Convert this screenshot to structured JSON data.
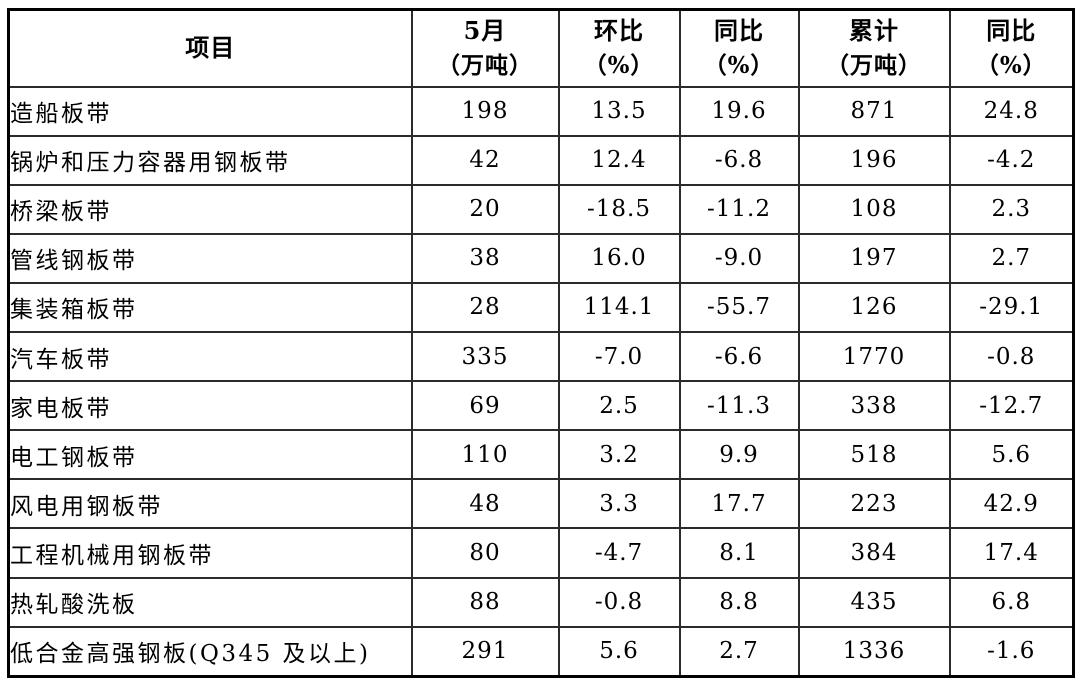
{
  "table": {
    "headers": [
      {
        "label": "项目",
        "sub": ""
      },
      {
        "label": "5月",
        "sub": "（万吨）"
      },
      {
        "label": "环比",
        "sub": "（%）"
      },
      {
        "label": "同比",
        "sub": "（%）"
      },
      {
        "label": "累计",
        "sub": "（万吨）"
      },
      {
        "label": "同比",
        "sub": "（%）"
      }
    ],
    "rows": [
      {
        "item": "造船板带",
        "may": "198",
        "mom": "13.5",
        "yoy": "19.6",
        "cum": "871",
        "cum_yoy": "24.8"
      },
      {
        "item": "锅炉和压力容器用钢板带",
        "may": "42",
        "mom": "12.4",
        "yoy": "-6.8",
        "cum": "196",
        "cum_yoy": "-4.2"
      },
      {
        "item": "桥梁板带",
        "may": "20",
        "mom": "-18.5",
        "yoy": "-11.2",
        "cum": "108",
        "cum_yoy": "2.3"
      },
      {
        "item": "管线钢板带",
        "may": "38",
        "mom": "16.0",
        "yoy": "-9.0",
        "cum": "197",
        "cum_yoy": "2.7"
      },
      {
        "item": "集装箱板带",
        "may": "28",
        "mom": "114.1",
        "yoy": "-55.7",
        "cum": "126",
        "cum_yoy": "-29.1"
      },
      {
        "item": "汽车板带",
        "may": "335",
        "mom": "-7.0",
        "yoy": "-6.6",
        "cum": "1770",
        "cum_yoy": "-0.8"
      },
      {
        "item": "家电板带",
        "may": "69",
        "mom": "2.5",
        "yoy": "-11.3",
        "cum": "338",
        "cum_yoy": "-12.7"
      },
      {
        "item": "电工钢板带",
        "may": "110",
        "mom": "3.2",
        "yoy": "9.9",
        "cum": "518",
        "cum_yoy": "5.6"
      },
      {
        "item": "风电用钢板带",
        "may": "48",
        "mom": "3.3",
        "yoy": "17.7",
        "cum": "223",
        "cum_yoy": "42.9"
      },
      {
        "item": "工程机械用钢板带",
        "may": "80",
        "mom": "-4.7",
        "yoy": "8.1",
        "cum": "384",
        "cum_yoy": "17.4"
      },
      {
        "item": "热轧酸洗板",
        "may": "88",
        "mom": "-0.8",
        "yoy": "8.8",
        "cum": "435",
        "cum_yoy": "6.8"
      },
      {
        "item": "低合金高强钢板(Q345 及以上)",
        "may": "291",
        "mom": "5.6",
        "yoy": "2.7",
        "cum": "1336",
        "cum_yoy": "-1.6"
      }
    ]
  },
  "colors": {
    "border_outer": "#000000",
    "border_inner": "#2b2b2b",
    "background": "#ffffff",
    "text": "#000000"
  }
}
